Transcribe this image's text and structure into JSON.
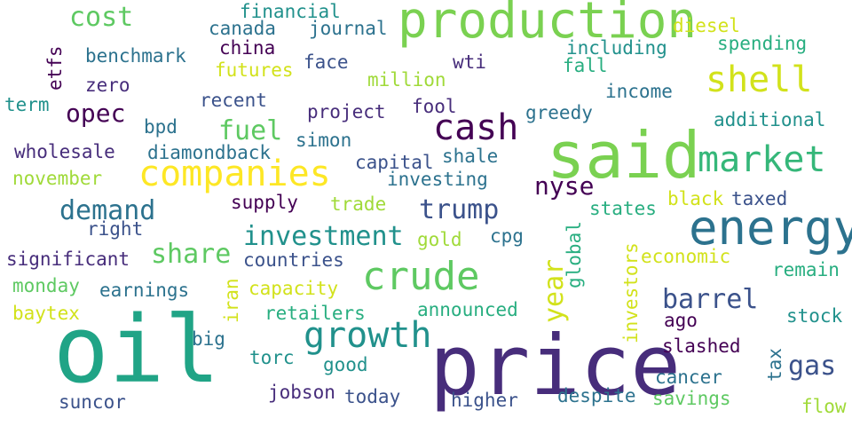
{
  "palette": {
    "deep_purple": "#440154",
    "indigo": "#472d7b",
    "slate_blue": "#3b528b",
    "steel_blue": "#2c728e",
    "teal": "#21918c",
    "sea_green": "#28ae80",
    "jade": "#20a486",
    "green": "#5ec962",
    "lime": "#addc30",
    "yellow": "#d2e21b"
  },
  "words": {
    "oil": "oil",
    "price": "price",
    "said": "said",
    "production": "production",
    "energy": "energy",
    "market": "market",
    "companies": "companies",
    "crude": "crude",
    "growth": "growth",
    "cash": "cash",
    "shell": "shell",
    "investment": "investment",
    "trump": "trump",
    "demand": "demand",
    "barrel": "barrel",
    "share": "share",
    "fuel": "fuel",
    "opec": "opec",
    "cost": "cost",
    "gas": "gas",
    "nyse": "nyse",
    "year": "year",
    "financial": "financial",
    "canada": "canada",
    "journal": "journal",
    "diesel": "diesel",
    "spending": "spending",
    "including": "including",
    "china": "china",
    "futures": "futures",
    "benchmark": "benchmark",
    "etfs": "etfs",
    "face": "face",
    "wti": "wti",
    "fall": "fall",
    "million": "million",
    "zero": "zero",
    "income": "income",
    "term": "term",
    "recent": "recent",
    "fool": "fool",
    "project": "project",
    "greedy": "greedy",
    "additional": "additional",
    "bpd": "bpd",
    "simon": "simon",
    "wholesale": "wholesale",
    "diamondback": "diamondback",
    "shale": "shale",
    "capital": "capital",
    "november": "november",
    "investing": "investing",
    "black": "black",
    "taxed": "taxed",
    "supply": "supply",
    "trade": "trade",
    "states": "states",
    "right": "right",
    "global": "global",
    "gold": "gold",
    "cpg": "cpg",
    "significant": "significant",
    "countries": "countries",
    "economic": "economic",
    "investors": "investors",
    "remain": "remain",
    "monday": "monday",
    "capacity": "capacity",
    "iran": "iran",
    "earnings": "earnings",
    "baytex": "baytex",
    "retailers": "retailers",
    "announced": "announced",
    "ago": "ago",
    "stock": "stock",
    "big": "big",
    "slashed": "slashed",
    "torc": "torc",
    "good": "good",
    "tax": "tax",
    "cancer": "cancer",
    "jobson": "jobson",
    "today": "today",
    "despite": "despite",
    "savings": "savings",
    "suncor": "suncor",
    "higher": "higher",
    "flow": "flow"
  }
}
